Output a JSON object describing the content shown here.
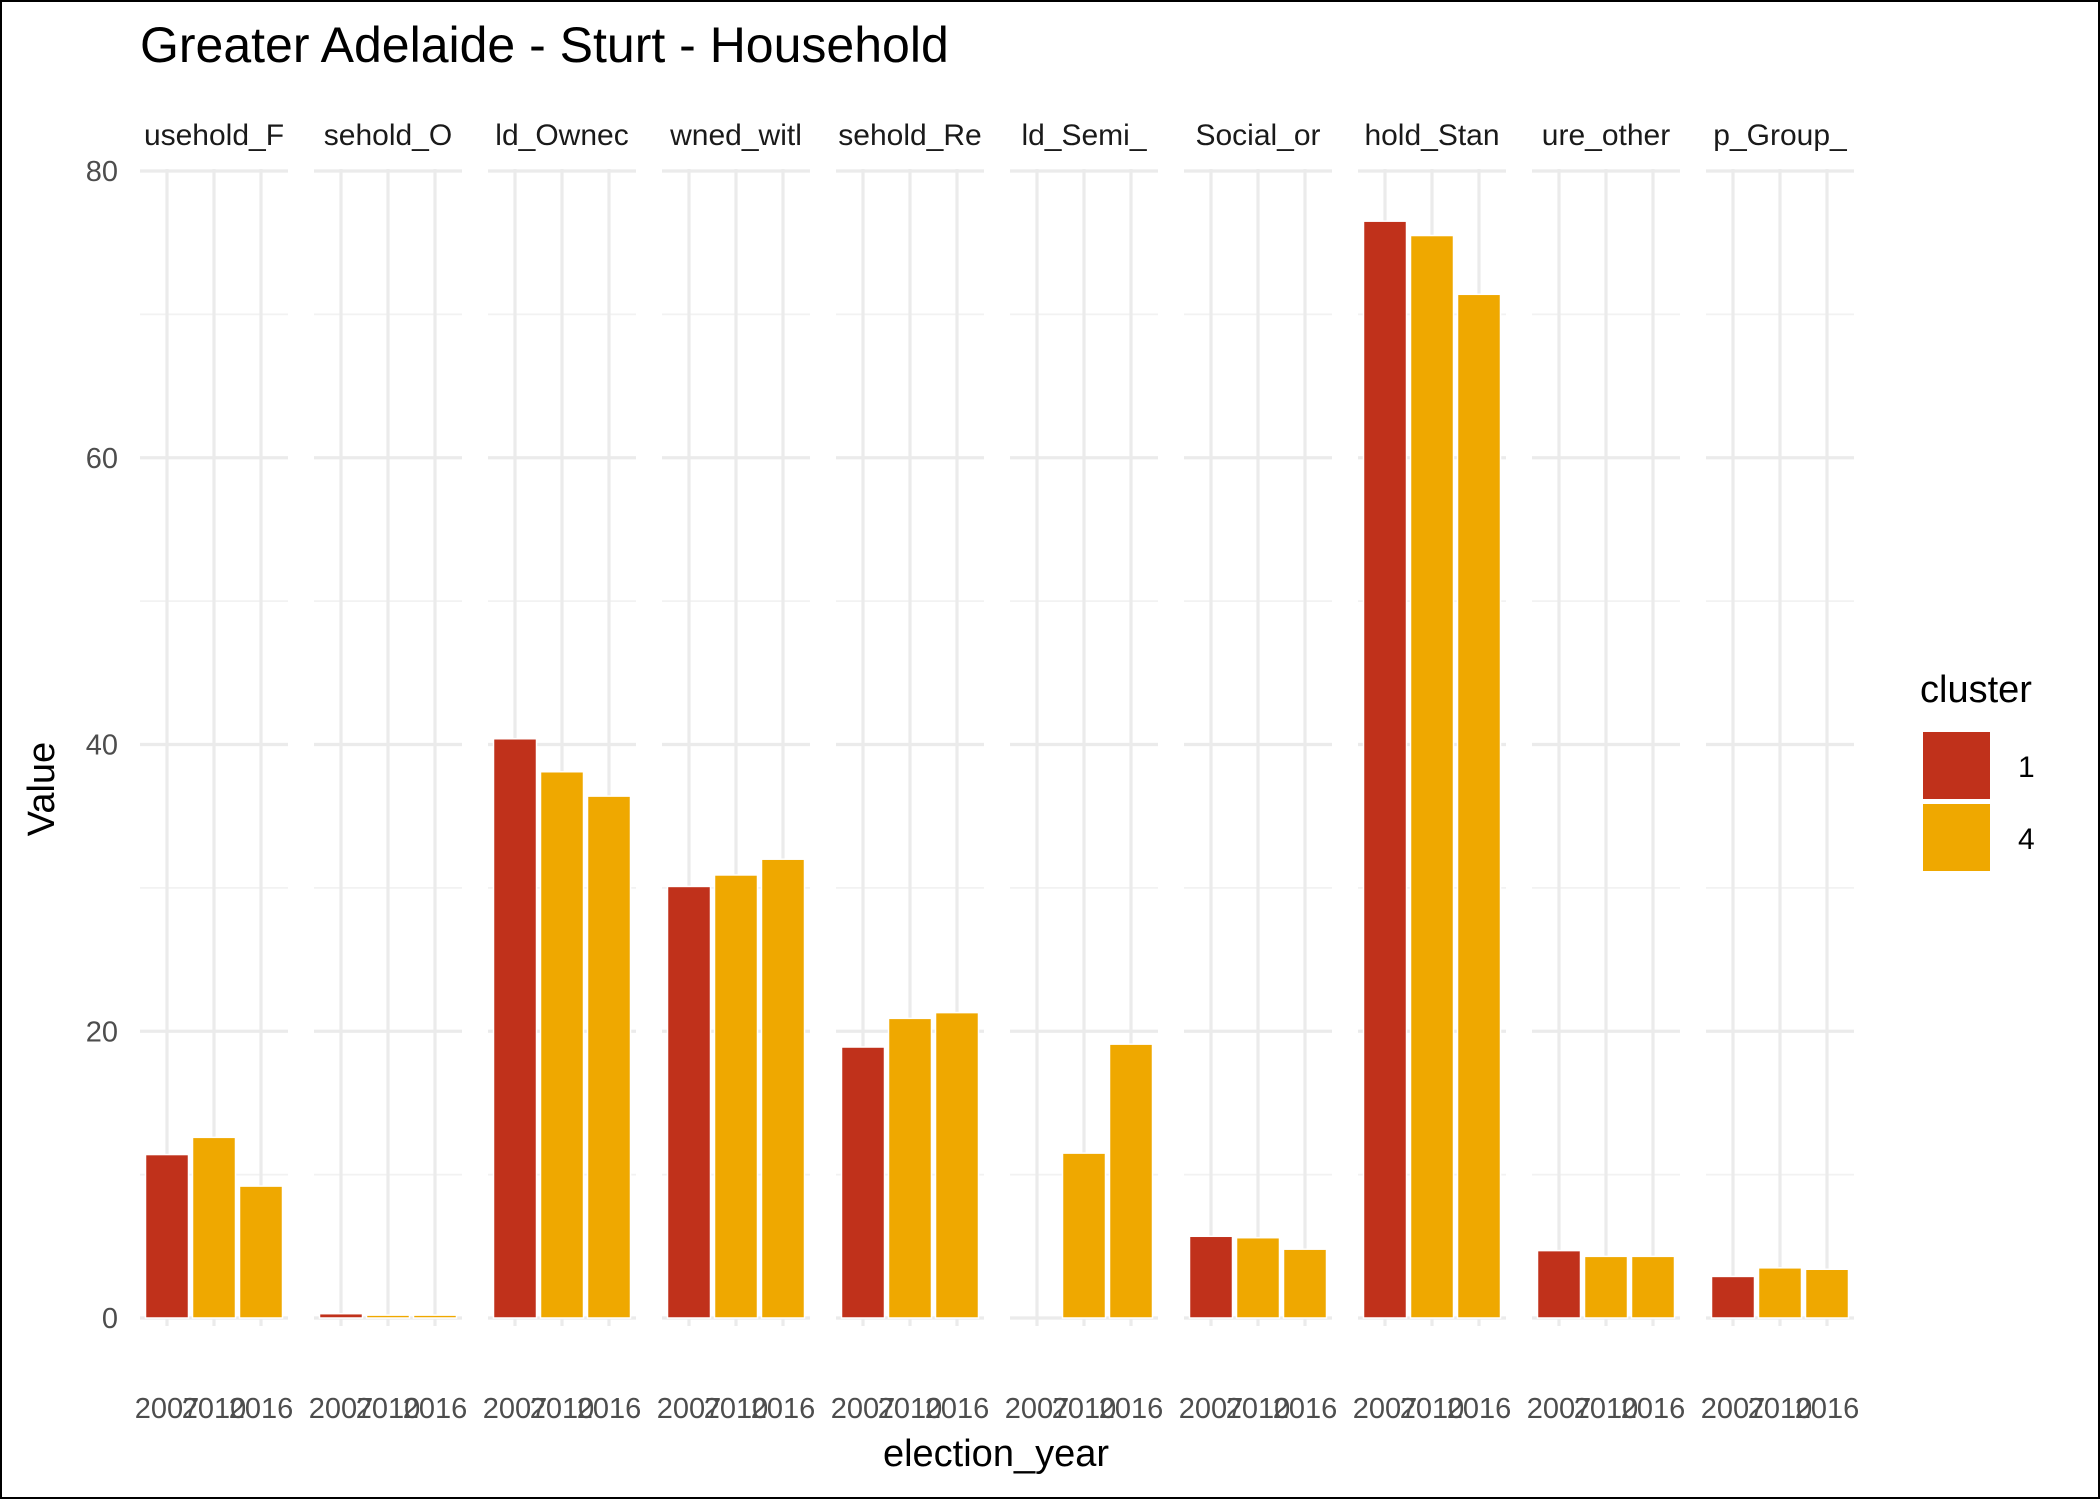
{
  "chart_data": {
    "type": "bar",
    "title": "Greater Adelaide - Sturt - Household",
    "xlabel": "election_year",
    "ylabel": "Value",
    "ylim": [
      0,
      80
    ],
    "y_ticks": [
      "0",
      "20",
      "40",
      "60",
      "80"
    ],
    "y_tick_values": [
      0,
      20,
      40,
      60,
      80
    ],
    "categories": [
      "2007",
      "2010",
      "2016"
    ],
    "category_labels": [
      "2007",
      "2010",
      "2016"
    ],
    "bar_cluster": [
      "1",
      "4",
      "4"
    ],
    "legend": {
      "title": "cluster",
      "position": "right",
      "items": [
        {
          "label": "1",
          "color": "#C0311B"
        },
        {
          "label": "4",
          "color": "#EFA800"
        }
      ]
    },
    "grid": true,
    "facets": [
      {
        "label": "usehold_F",
        "values": [
          11.4,
          12.6,
          9.2
        ]
      },
      {
        "label": "sehold_O",
        "values": [
          0.3,
          0.2,
          0.2
        ]
      },
      {
        "label": "ld_Ownec",
        "values": [
          40.4,
          38.1,
          36.4
        ]
      },
      {
        "label": "wned_witl",
        "values": [
          30.1,
          30.9,
          32.0
        ]
      },
      {
        "label": "sehold_Re",
        "values": [
          18.9,
          20.9,
          21.3
        ]
      },
      {
        "label": "ld_Semi_",
        "values": [
          null,
          11.5,
          19.1
        ]
      },
      {
        "label": "Social_or",
        "values": [
          5.7,
          5.6,
          4.8
        ]
      },
      {
        "label": "hold_Stan",
        "values": [
          76.5,
          75.5,
          71.4
        ]
      },
      {
        "label": "ure_other",
        "values": [
          4.7,
          4.3,
          4.3
        ]
      },
      {
        "label": "p_Group_",
        "values": [
          2.9,
          3.5,
          3.4
        ]
      }
    ]
  }
}
